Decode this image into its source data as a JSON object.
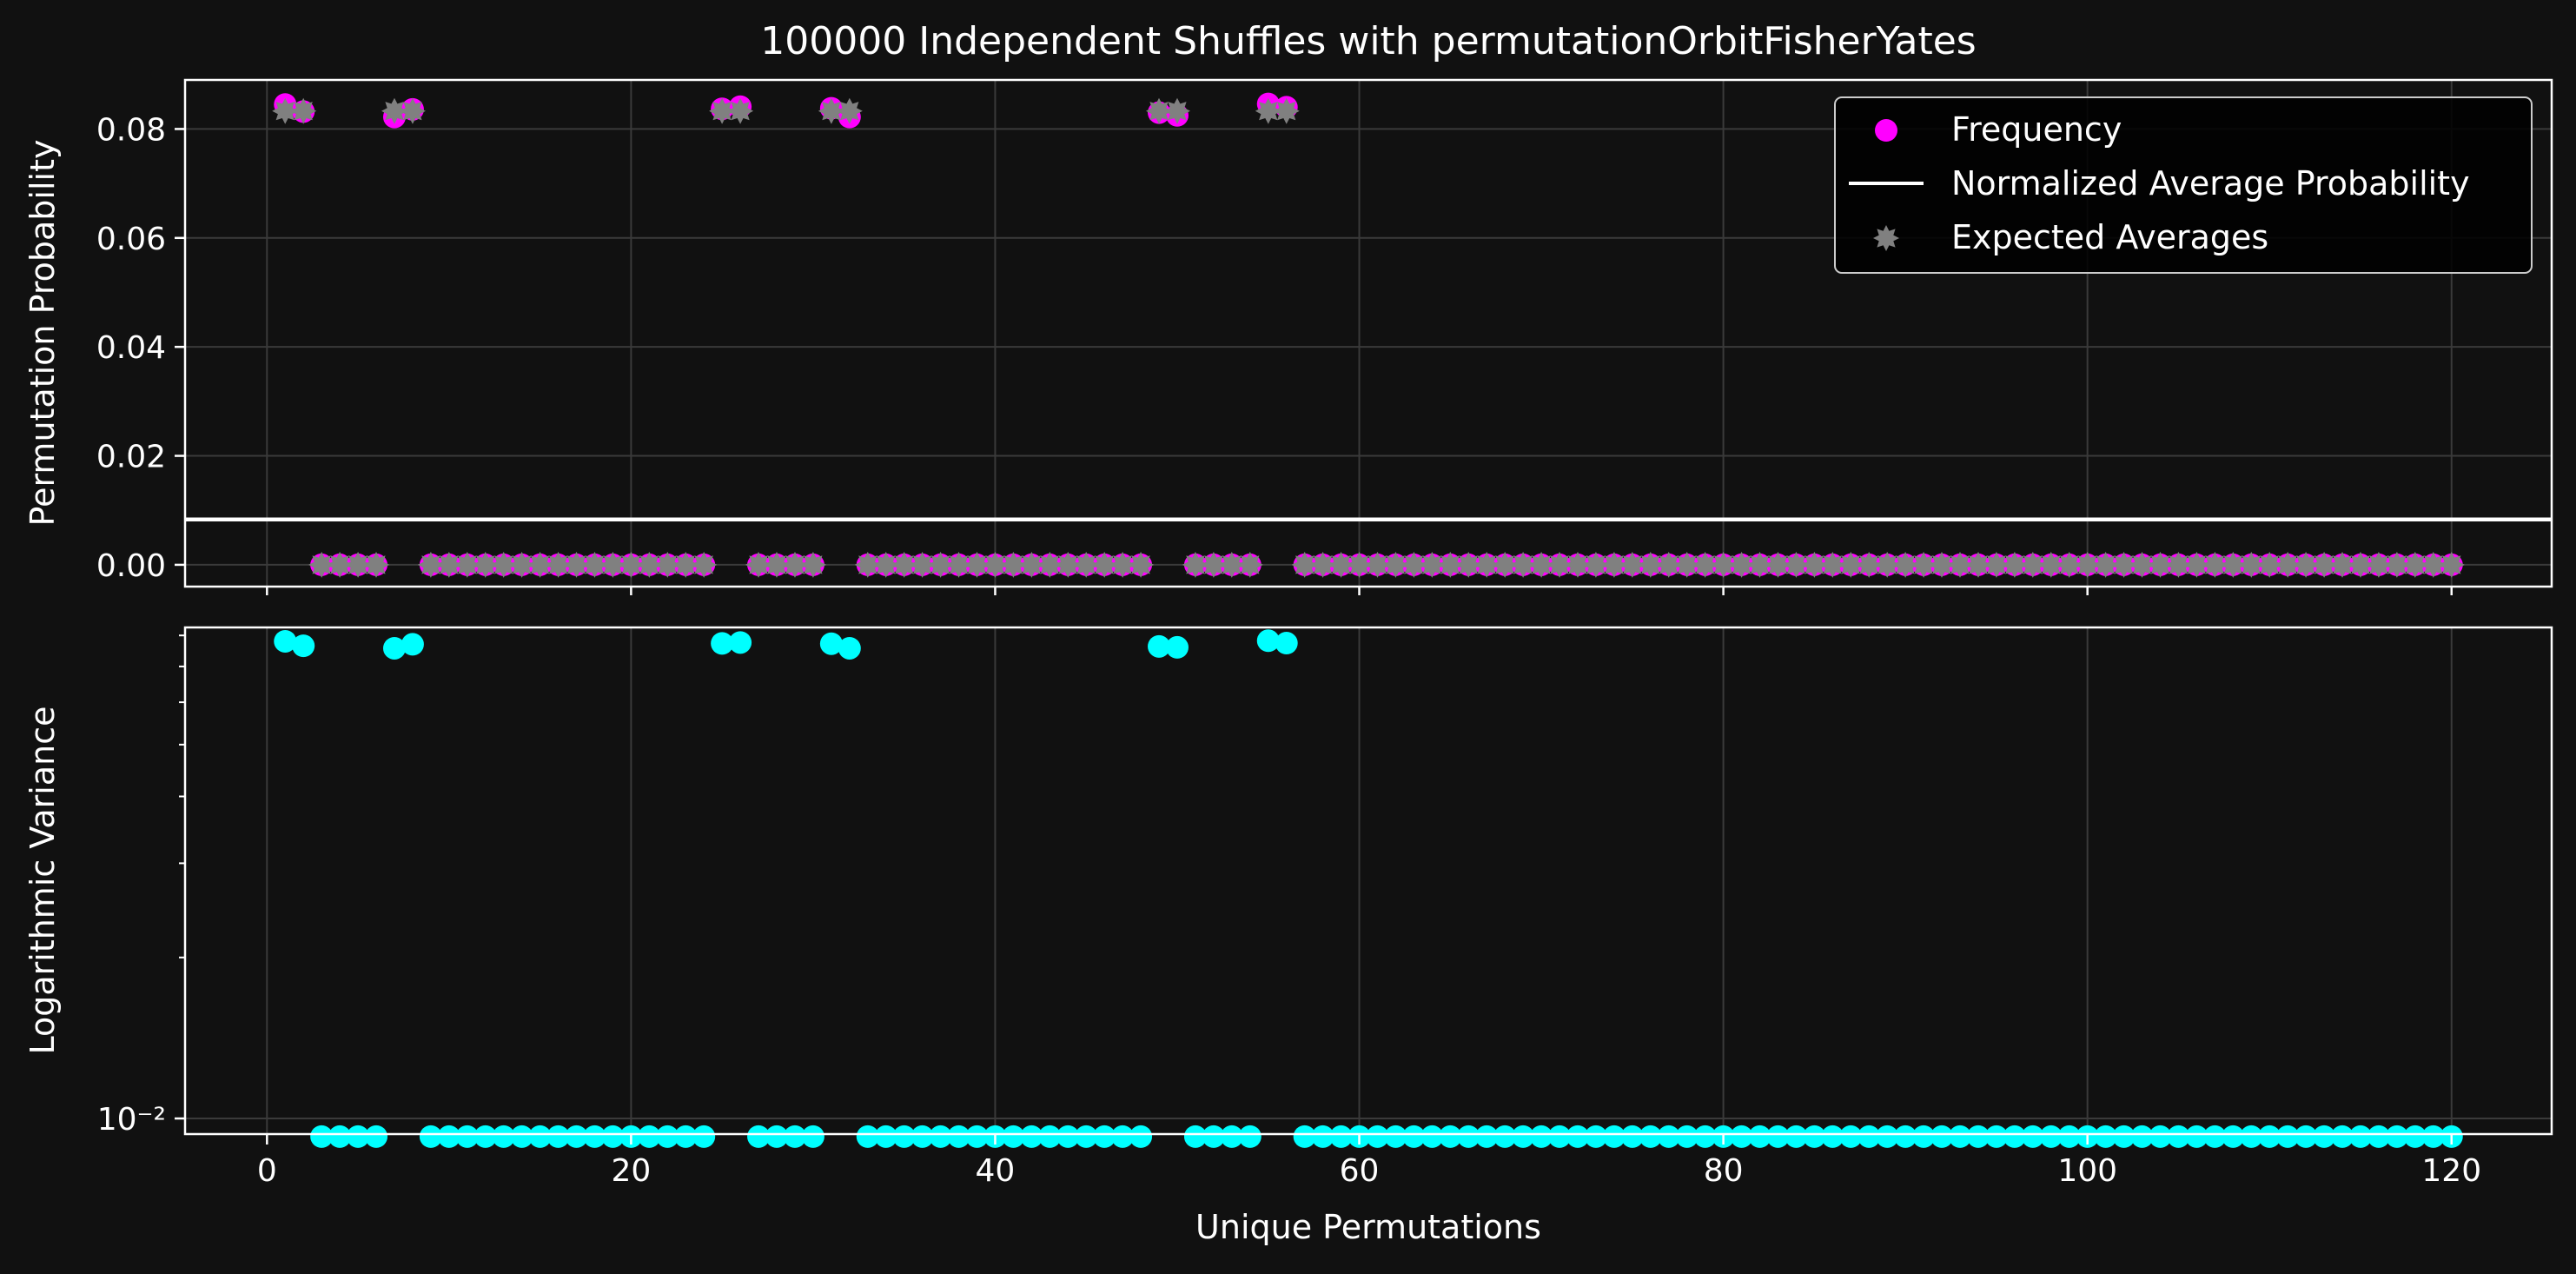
{
  "chart_data": {
    "title": "100000 Independent Shuffles with permutationOrbitFisherYates",
    "xlabel": "Unique Permutations",
    "x_ticks": [
      0,
      20,
      40,
      60,
      80,
      100,
      120
    ],
    "xlim": [
      -4.5,
      125.5
    ],
    "grid": true,
    "colors": {
      "background": "#111111",
      "frequency": "#ff00ff",
      "expected": "#808080",
      "variance": "#00ffff",
      "average_line": "#ffffff",
      "axes": "#ffffff",
      "grid": "#3a3a3a"
    },
    "panels": [
      {
        "type": "scatter",
        "ylabel": "Permutation Probability",
        "ylim": [
          -0.004,
          0.089
        ],
        "y_scale": "linear",
        "y_tick_labels": [
          "0.00",
          "0.02",
          "0.04",
          "0.06",
          "0.08"
        ],
        "y_tick_values": [
          0.0,
          0.02,
          0.04,
          0.06,
          0.08
        ],
        "legend_position": "upper-right",
        "series": [
          {
            "name": "Frequency",
            "kind": "scatter",
            "marker": "circle",
            "color": "#ff00ff",
            "x": [
              1,
              2,
              3,
              4,
              5,
              6,
              7,
              8,
              9,
              10,
              11,
              12,
              13,
              14,
              15,
              16,
              17,
              18,
              19,
              20,
              21,
              22,
              23,
              24,
              25,
              26,
              27,
              28,
              29,
              30,
              31,
              32,
              33,
              34,
              35,
              36,
              37,
              38,
              39,
              40,
              41,
              42,
              43,
              44,
              45,
              46,
              47,
              48,
              49,
              50,
              51,
              52,
              53,
              54,
              55,
              56,
              57,
              58,
              59,
              60,
              61,
              62,
              63,
              64,
              65,
              66,
              67,
              68,
              69,
              70,
              71,
              72,
              73,
              74,
              75,
              76,
              77,
              78,
              79,
              80,
              81,
              82,
              83,
              84,
              85,
              86,
              87,
              88,
              89,
              90,
              91,
              92,
              93,
              94,
              95,
              96,
              97,
              98,
              99,
              100,
              101,
              102,
              103,
              104,
              105,
              106,
              107,
              108,
              109,
              110,
              111,
              112,
              113,
              114,
              115,
              116,
              117,
              118,
              119,
              120
            ],
            "y": [
              0.0845,
              0.0832,
              0,
              0,
              0,
              0,
              0.0822,
              0.0836,
              0,
              0,
              0,
              0,
              0,
              0,
              0,
              0,
              0,
              0,
              0,
              0,
              0,
              0,
              0,
              0,
              0.0837,
              0.0841,
              0,
              0,
              0,
              0,
              0.0838,
              0.0822,
              0,
              0,
              0,
              0,
              0,
              0,
              0,
              0,
              0,
              0,
              0,
              0,
              0,
              0,
              0,
              0,
              0.083,
              0.0825,
              0,
              0,
              0,
              0,
              0.0846,
              0.084,
              0,
              0,
              0,
              0,
              0,
              0,
              0,
              0,
              0,
              0,
              0,
              0,
              0,
              0,
              0,
              0,
              0,
              0,
              0,
              0,
              0,
              0,
              0,
              0,
              0,
              0,
              0,
              0,
              0,
              0,
              0,
              0,
              0,
              0,
              0,
              0,
              0,
              0,
              0,
              0,
              0,
              0,
              0,
              0,
              0,
              0,
              0,
              0,
              0,
              0,
              0,
              0,
              0,
              0,
              0,
              0,
              0,
              0,
              0,
              0,
              0,
              0,
              0,
              0
            ]
          },
          {
            "name": "Normalized Average Probability",
            "kind": "hline",
            "color": "#ffffff",
            "y": 0.00833
          },
          {
            "name": "Expected Averages",
            "kind": "scatter",
            "marker": "star",
            "color": "#808080",
            "x": [
              1,
              2,
              3,
              4,
              5,
              6,
              7,
              8,
              9,
              10,
              11,
              12,
              13,
              14,
              15,
              16,
              17,
              18,
              19,
              20,
              21,
              22,
              23,
              24,
              25,
              26,
              27,
              28,
              29,
              30,
              31,
              32,
              33,
              34,
              35,
              36,
              37,
              38,
              39,
              40,
              41,
              42,
              43,
              44,
              45,
              46,
              47,
              48,
              49,
              50,
              51,
              52,
              53,
              54,
              55,
              56,
              57,
              58,
              59,
              60,
              61,
              62,
              63,
              64,
              65,
              66,
              67,
              68,
              69,
              70,
              71,
              72,
              73,
              74,
              75,
              76,
              77,
              78,
              79,
              80,
              81,
              82,
              83,
              84,
              85,
              86,
              87,
              88,
              89,
              90,
              91,
              92,
              93,
              94,
              95,
              96,
              97,
              98,
              99,
              100,
              101,
              102,
              103,
              104,
              105,
              106,
              107,
              108,
              109,
              110,
              111,
              112,
              113,
              114,
              115,
              116,
              117,
              118,
              119,
              120
            ],
            "y": [
              0.0833,
              0.0833,
              0,
              0,
              0,
              0,
              0.0833,
              0.0833,
              0,
              0,
              0,
              0,
              0,
              0,
              0,
              0,
              0,
              0,
              0,
              0,
              0,
              0,
              0,
              0,
              0.0833,
              0.0833,
              0,
              0,
              0,
              0,
              0.0833,
              0.0833,
              0,
              0,
              0,
              0,
              0,
              0,
              0,
              0,
              0,
              0,
              0,
              0,
              0,
              0,
              0,
              0,
              0.0833,
              0.0833,
              0,
              0,
              0,
              0,
              0.0833,
              0.0833,
              0,
              0,
              0,
              0,
              0,
              0,
              0,
              0,
              0,
              0,
              0,
              0,
              0,
              0,
              0,
              0,
              0,
              0,
              0,
              0,
              0,
              0,
              0,
              0,
              0,
              0,
              0,
              0,
              0,
              0,
              0,
              0,
              0,
              0,
              0,
              0,
              0,
              0,
              0,
              0,
              0,
              0,
              0,
              0,
              0,
              0,
              0,
              0,
              0,
              0,
              0,
              0,
              0,
              0,
              0,
              0,
              0,
              0,
              0,
              0,
              0,
              0,
              0,
              0
            ]
          }
        ]
      },
      {
        "type": "scatter",
        "ylabel": "Logarithmic Variance",
        "y_scale": "log",
        "ylim": [
          0.00935,
          0.0828
        ],
        "y_tick_labels": [
          "10⁻²"
        ],
        "y_tick_values": [
          0.01
        ],
        "series": [
          {
            "name": "",
            "kind": "scatter",
            "marker": "circle",
            "color": "#00ffff",
            "x": [
              1,
              2,
              3,
              4,
              5,
              6,
              7,
              8,
              9,
              10,
              11,
              12,
              13,
              14,
              15,
              16,
              17,
              18,
              19,
              20,
              21,
              22,
              23,
              24,
              25,
              26,
              27,
              28,
              29,
              30,
              31,
              32,
              33,
              34,
              35,
              36,
              37,
              38,
              39,
              40,
              41,
              42,
              43,
              44,
              45,
              46,
              47,
              48,
              49,
              50,
              51,
              52,
              53,
              54,
              55,
              56,
              57,
              58,
              59,
              60,
              61,
              62,
              63,
              64,
              65,
              66,
              67,
              68,
              69,
              70,
              71,
              72,
              73,
              74,
              75,
              76,
              77,
              78,
              79,
              80,
              81,
              82,
              83,
              84,
              85,
              86,
              87,
              88,
              89,
              90,
              91,
              92,
              93,
              94,
              95,
              96,
              97,
              98,
              99,
              100,
              101,
              102,
              103,
              104,
              105,
              106,
              107,
              108,
              109,
              110,
              111,
              112,
              113,
              114,
              115,
              116,
              117,
              118,
              119,
              120
            ],
            "y": [
              0.078,
              0.0765,
              0.00925,
              0.00925,
              0.00925,
              0.00925,
              0.0757,
              0.077,
              0.00925,
              0.00925,
              0.00925,
              0.00925,
              0.00925,
              0.00925,
              0.00925,
              0.00925,
              0.00925,
              0.00925,
              0.00925,
              0.00925,
              0.00925,
              0.00925,
              0.00925,
              0.00925,
              0.0773,
              0.0776,
              0.00925,
              0.00925,
              0.00925,
              0.00925,
              0.0772,
              0.0757,
              0.00925,
              0.00925,
              0.00925,
              0.00925,
              0.00925,
              0.00925,
              0.00925,
              0.00925,
              0.00925,
              0.00925,
              0.00925,
              0.00925,
              0.00925,
              0.00925,
              0.00925,
              0.00925,
              0.0763,
              0.076,
              0.00925,
              0.00925,
              0.00925,
              0.00925,
              0.0782,
              0.0774,
              0.00925,
              0.00925,
              0.00925,
              0.00925,
              0.00925,
              0.00925,
              0.00925,
              0.00925,
              0.00925,
              0.00925,
              0.00925,
              0.00925,
              0.00925,
              0.00925,
              0.00925,
              0.00925,
              0.00925,
              0.00925,
              0.00925,
              0.00925,
              0.00925,
              0.00925,
              0.00925,
              0.00925,
              0.00925,
              0.00925,
              0.00925,
              0.00925,
              0.00925,
              0.00925,
              0.00925,
              0.00925,
              0.00925,
              0.00925,
              0.00925,
              0.00925,
              0.00925,
              0.00925,
              0.00925,
              0.00925,
              0.00925,
              0.00925,
              0.00925,
              0.00925,
              0.00925,
              0.00925,
              0.00925,
              0.00925,
              0.00925,
              0.00925,
              0.00925,
              0.00925,
              0.00925,
              0.00925,
              0.00925,
              0.00925,
              0.00925,
              0.00925,
              0.00925,
              0.00925,
              0.00925,
              0.00925,
              0.00925,
              0.00925
            ]
          }
        ]
      }
    ]
  }
}
